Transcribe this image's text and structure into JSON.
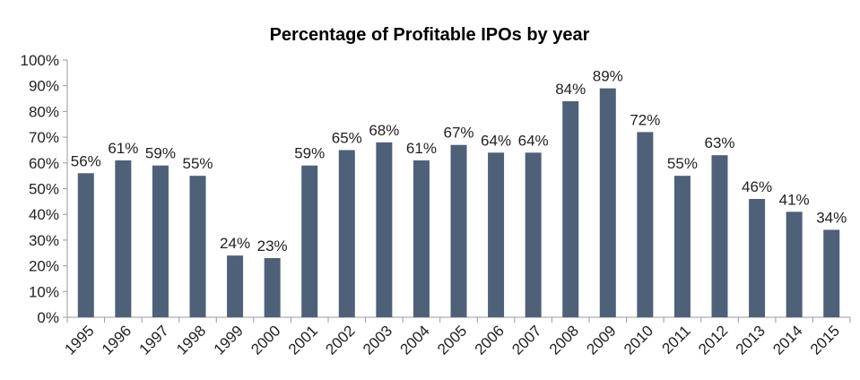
{
  "chart_data": {
    "type": "bar",
    "title": "Percentage of Profitable IPOs by year",
    "xlabel": "",
    "ylabel": "",
    "ylim": [
      0,
      100
    ],
    "yticks": [
      "0%",
      "10%",
      "20%",
      "30%",
      "40%",
      "50%",
      "60%",
      "70%",
      "80%",
      "90%",
      "100%"
    ],
    "categories": [
      "1995",
      "1996",
      "1997",
      "1998",
      "1999",
      "2000",
      "2001",
      "2002",
      "2003",
      "2004",
      "2005",
      "2006",
      "2007",
      "2008",
      "2009",
      "2010",
      "2011",
      "2012",
      "2013",
      "2014",
      "2015"
    ],
    "values": [
      56,
      61,
      59,
      55,
      24,
      23,
      59,
      65,
      68,
      61,
      67,
      64,
      64,
      84,
      89,
      72,
      55,
      63,
      46,
      41,
      34
    ],
    "data_labels": [
      "56%",
      "61%",
      "59%",
      "55%",
      "24%",
      "23%",
      "59%",
      "65%",
      "68%",
      "61%",
      "67%",
      "64%",
      "64%",
      "84%",
      "89%",
      "72%",
      "55%",
      "63%",
      "46%",
      "41%",
      "34%"
    ],
    "grid": false,
    "legend": "none",
    "bar_color": "#4f6079"
  }
}
